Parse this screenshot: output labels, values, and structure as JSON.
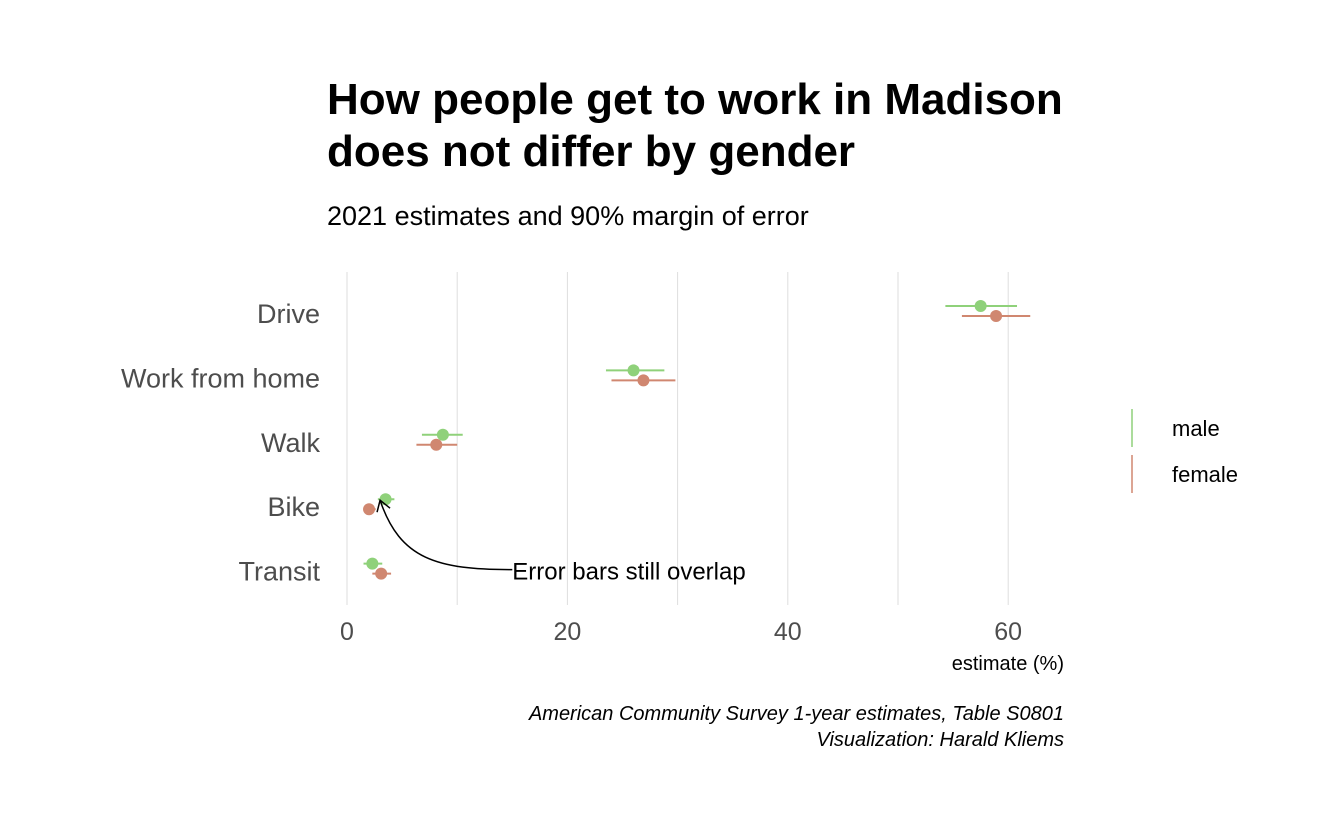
{
  "chart_data": {
    "type": "dot-errorbar",
    "title_lines": [
      "How people get to work in Madison",
      "does not differ by gender"
    ],
    "subtitle": "2021 estimates and 90% margin of error",
    "xlabel": "estimate (%)",
    "ylabel": "",
    "xlim": [
      0,
      70
    ],
    "x_ticks": [
      0,
      20,
      40,
      60
    ],
    "grid": "vertical",
    "legend_position": "right",
    "categories": [
      "Drive",
      "Work from home",
      "Walk",
      "Bike",
      "Transit"
    ],
    "series": [
      {
        "name": "male",
        "color": "#8fd17a",
        "estimate": [
          57.5,
          26.0,
          8.7,
          3.5,
          2.3
        ],
        "low": [
          54.3,
          23.5,
          6.8,
          2.8,
          1.5
        ],
        "high": [
          60.8,
          28.8,
          10.5,
          4.3,
          3.2
        ]
      },
      {
        "name": "female",
        "color": "#d08770",
        "estimate": [
          58.9,
          26.9,
          8.1,
          2.0,
          3.1
        ],
        "low": [
          55.8,
          24.0,
          6.3,
          1.5,
          2.3
        ],
        "high": [
          62.0,
          29.8,
          10.0,
          2.6,
          4.0
        ]
      }
    ],
    "annotation": {
      "text": "Error bars still overlap",
      "target_category": "Bike",
      "target_x": 3.0,
      "text_x": 15.0,
      "text_category": "Transit"
    },
    "caption_lines": [
      "American Community Survey 1-year estimates, Table S0801",
      "Visualization: Harald Kliems"
    ]
  }
}
